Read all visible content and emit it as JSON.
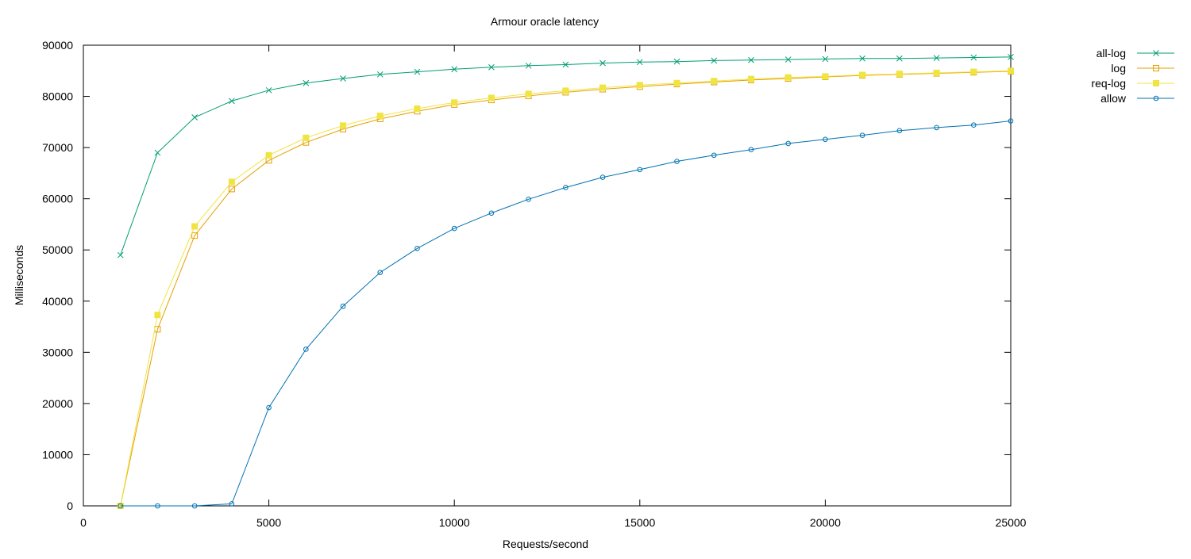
{
  "chart_data": {
    "type": "line",
    "title": "Armour oracle latency",
    "xlabel": "Requests/second",
    "ylabel": "Milliseconds",
    "xlim": [
      0,
      25000
    ],
    "ylim": [
      0,
      90000
    ],
    "x_ticks": [
      0,
      5000,
      10000,
      15000,
      20000,
      25000
    ],
    "y_ticks": [
      0,
      10000,
      20000,
      30000,
      40000,
      50000,
      60000,
      70000,
      80000,
      90000
    ],
    "grid": false,
    "legend_position": "outside-top-right",
    "x": [
      1000,
      2000,
      3000,
      4000,
      5000,
      6000,
      7000,
      8000,
      9000,
      10000,
      11000,
      12000,
      13000,
      14000,
      15000,
      16000,
      17000,
      18000,
      19000,
      20000,
      21000,
      22000,
      23000,
      24000,
      25000
    ],
    "series": [
      {
        "name": "all-log",
        "color": "#009e73",
        "marker": "x",
        "values": [
          49000,
          69000,
          75900,
          79100,
          81200,
          82600,
          83500,
          84300,
          84800,
          85300,
          85700,
          86000,
          86200,
          86500,
          86700,
          86800,
          87000,
          87100,
          87200,
          87300,
          87400,
          87400,
          87500,
          87600,
          87700
        ]
      },
      {
        "name": "log",
        "color": "#e69f00",
        "marker": "square-open",
        "values": [
          0,
          34500,
          52800,
          61900,
          67500,
          71000,
          73600,
          75600,
          77100,
          78400,
          79300,
          80100,
          80800,
          81400,
          81900,
          82400,
          82800,
          83200,
          83500,
          83800,
          84100,
          84300,
          84500,
          84700,
          84900
        ]
      },
      {
        "name": "req-log",
        "color": "#f0e442",
        "marker": "square-filled",
        "values": [
          0,
          37300,
          54600,
          63300,
          68500,
          71900,
          74300,
          76200,
          77600,
          78800,
          79700,
          80500,
          81100,
          81700,
          82200,
          82600,
          83000,
          83400,
          83700,
          83900,
          84200,
          84400,
          84600,
          84800,
          85000
        ]
      },
      {
        "name": "allow",
        "color": "#0072b2",
        "marker": "circle-open",
        "values": [
          0,
          0,
          0,
          400,
          19200,
          30600,
          39000,
          45600,
          50300,
          54200,
          57200,
          59900,
          62200,
          64200,
          65700,
          67300,
          68500,
          69600,
          70800,
          71600,
          72400,
          73300,
          73900,
          74400,
          75200
        ]
      }
    ]
  }
}
